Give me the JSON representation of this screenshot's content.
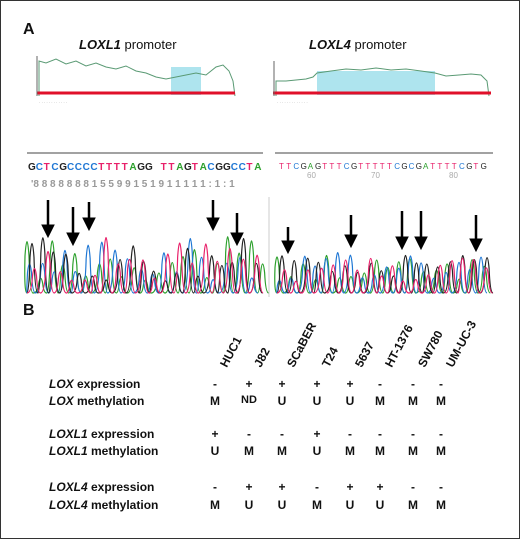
{
  "panels": {
    "a": {
      "label": "A"
    },
    "b": {
      "label": "B"
    }
  },
  "promoters": {
    "loxl1": {
      "gene": "LOXL1",
      "suffix": " promoter",
      "seq": "GCTCGCCCCTTTTAGG TTAGTACGGCCTA"
    },
    "loxl4": {
      "gene": "LOXL4",
      "suffix": " promoter",
      "seq": "TTCGAGTTTCGTTTTTCGCGATTTTCGTG",
      "ticks": [
        "60",
        "70",
        "80"
      ]
    }
  },
  "cell_lines": [
    "HUC1",
    "J82",
    "SCaBER",
    "T24",
    "5637",
    "HT-1376",
    "SW780",
    "UM-UC-3"
  ],
  "table": {
    "groups": [
      {
        "rows": [
          {
            "gene": "LOX",
            "suffix": " expression",
            "values": [
              "-",
              "+",
              "+",
              "+",
              "+",
              "-",
              "-",
              "-"
            ]
          },
          {
            "gene": "LOX",
            "suffix": " methylation",
            "values": [
              "M",
              "ND",
              "U",
              "U",
              "U",
              "M",
              "M",
              "M"
            ]
          }
        ]
      },
      {
        "rows": [
          {
            "gene": "LOXL1",
            "suffix": " expression",
            "values": [
              "+",
              "-",
              "-",
              "+",
              "-",
              "-",
              "-",
              "-"
            ]
          },
          {
            "gene": "LOXL1",
            "suffix": " methylation",
            "values": [
              "U",
              "M",
              "M",
              "U",
              "M",
              "M",
              "M",
              "M"
            ]
          }
        ]
      },
      {
        "rows": [
          {
            "gene": "LOXL4",
            "suffix": "  expression",
            "values": [
              "-",
              "+",
              "+",
              "-",
              "+",
              "+",
              "-",
              "-"
            ]
          },
          {
            "gene": "LOXL4",
            "suffix": " methylation",
            "values": [
              "M",
              "U",
              "U",
              "M",
              "U",
              "U",
              "M",
              "M"
            ]
          }
        ]
      }
    ]
  },
  "colors": {
    "profile_line": "#5a9a74",
    "baseline": "#e0102a",
    "island_fill": "#aee4ee",
    "trace_A": "#2ca02c",
    "trace_C": "#1f77d4",
    "trace_G": "#222222",
    "trace_T": "#e8206a"
  }
}
